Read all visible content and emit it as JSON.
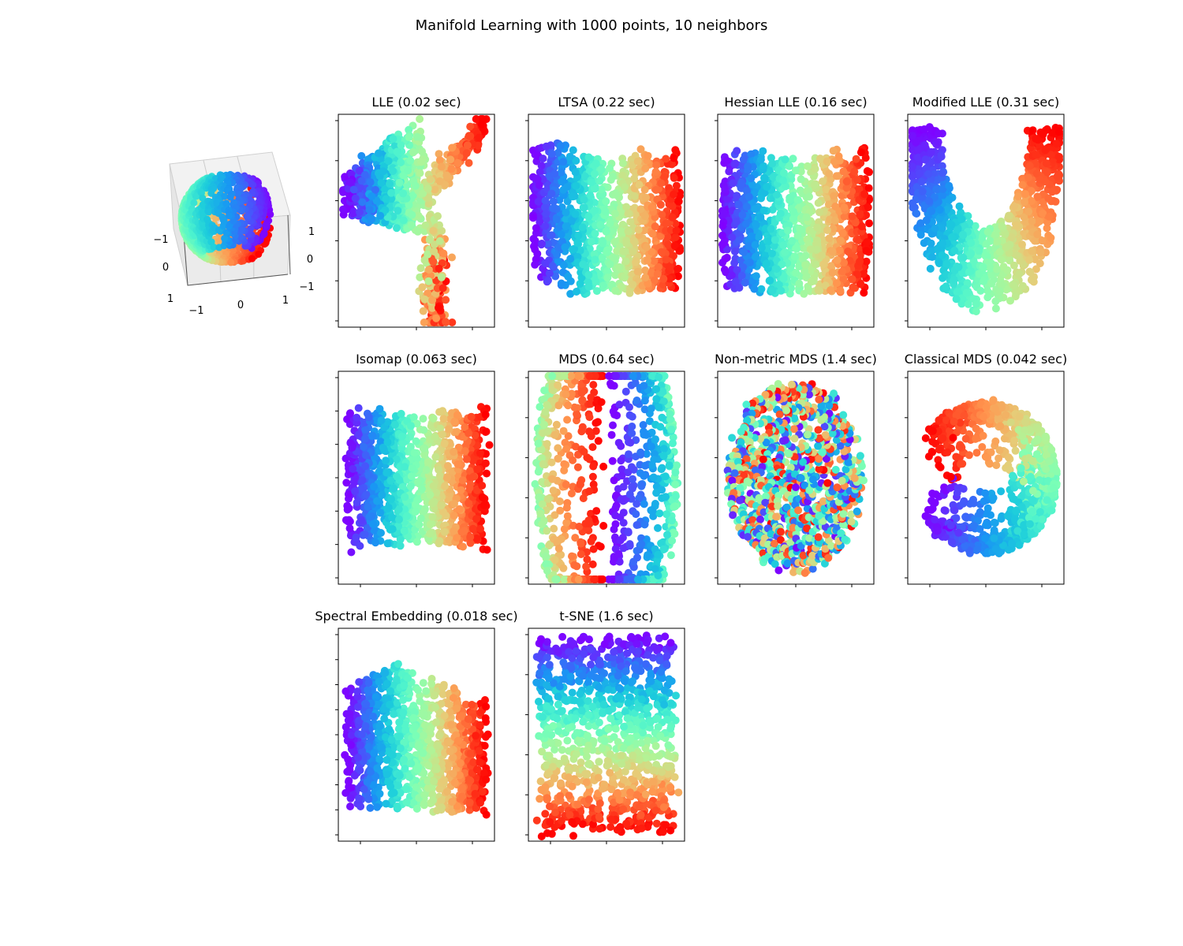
{
  "figure": {
    "title": "Manifold Learning with 1000 points, 10 neighbors"
  },
  "colormap": {
    "name": "rainbow",
    "stops": [
      "#8000ff",
      "#4e4dfc",
      "#1996f3",
      "#1cccdc",
      "#4df3ce",
      "#80ffb4",
      "#b2f396",
      "#e6cc78",
      "#ff964f",
      "#ff4d27",
      "#ff0000"
    ]
  },
  "chart_data": [
    {
      "type": "scatter3d",
      "title": "",
      "description": "Input data: points on a sphere with a slice removed, colored by angle",
      "x_ticks": [
        "−1",
        "0",
        "1"
      ],
      "y_ticks": [
        "−1",
        "0",
        "1"
      ],
      "z_ticks": [
        "1",
        "0",
        "−1"
      ],
      "n_points": 1000
    },
    {
      "type": "scatter",
      "title": "LLE (0.02 sec)",
      "shape": "lle",
      "x_ticks": 3,
      "y_ticks": 6,
      "n_points": 1000
    },
    {
      "type": "scatter",
      "title": "LTSA (0.22 sec)",
      "shape": "ltsa",
      "x_ticks": 3,
      "y_ticks": 6,
      "n_points": 1000
    },
    {
      "type": "scatter",
      "title": "Hessian LLE (0.16 sec)",
      "shape": "hessian",
      "x_ticks": 3,
      "y_ticks": 6,
      "n_points": 1000
    },
    {
      "type": "scatter",
      "title": "Modified LLE (0.31 sec)",
      "shape": "modified",
      "x_ticks": 3,
      "y_ticks": 6,
      "n_points": 1000
    },
    {
      "type": "scatter",
      "title": "Isomap (0.063 sec)",
      "shape": "isomap",
      "x_ticks": 3,
      "y_ticks": 7,
      "n_points": 1000
    },
    {
      "type": "scatter",
      "title": "MDS (0.64 sec)",
      "shape": "mds",
      "x_ticks": 3,
      "y_ticks": 6,
      "n_points": 1000
    },
    {
      "type": "scatter",
      "title": "Non-metric MDS (1.4 sec)",
      "shape": "nmds",
      "x_ticks": 3,
      "y_ticks": 6,
      "n_points": 1000
    },
    {
      "type": "scatter",
      "title": "Classical MDS (0.042 sec)",
      "shape": "classical",
      "x_ticks": 3,
      "y_ticks": 6,
      "n_points": 1000
    },
    {
      "type": "scatter",
      "title": "Spectral Embedding (0.018 sec)",
      "shape": "spectral",
      "x_ticks": 3,
      "y_ticks": 9,
      "n_points": 1000
    },
    {
      "type": "scatter",
      "title": "t-SNE (1.6 sec)",
      "shape": "tsne",
      "x_ticks": 3,
      "y_ticks": 6,
      "n_points": 1000
    }
  ]
}
